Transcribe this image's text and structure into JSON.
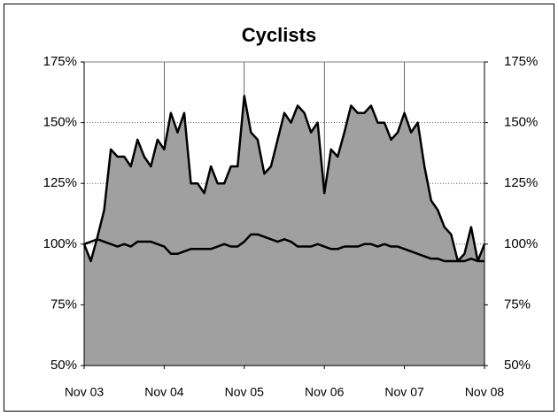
{
  "chart_data": {
    "type": "area",
    "title": "Cyclists",
    "x": [
      "Nov 03",
      null,
      null,
      null,
      null,
      null,
      null,
      null,
      null,
      null,
      null,
      null,
      "Nov 04",
      null,
      null,
      null,
      null,
      null,
      null,
      null,
      null,
      null,
      null,
      null,
      "Nov 05",
      null,
      null,
      null,
      null,
      null,
      null,
      null,
      null,
      null,
      null,
      null,
      "Nov 06",
      null,
      null,
      null,
      null,
      null,
      null,
      null,
      null,
      null,
      null,
      null,
      "Nov 07",
      null,
      null,
      null,
      null,
      null,
      null,
      null,
      null,
      null,
      null,
      null,
      "Nov 08"
    ],
    "series": [
      {
        "type": "area",
        "color": "#000000",
        "fill": "#a0a0a0",
        "values": [
          100,
          93,
          103,
          114,
          139,
          136,
          136,
          132,
          143,
          136,
          132,
          143,
          139,
          154,
          146,
          154,
          125,
          125,
          121,
          132,
          125,
          125,
          132,
          132,
          161,
          146,
          143,
          129,
          132,
          143,
          154,
          150,
          157,
          154,
          146,
          150,
          121,
          139,
          136,
          146,
          157,
          154,
          154,
          157,
          150,
          150,
          143,
          146,
          154,
          146,
          150,
          132,
          118,
          114,
          107,
          104,
          93,
          96,
          107,
          93,
          100
        ]
      },
      {
        "type": "line",
        "color": "#000000",
        "values": [
          100,
          101,
          102,
          101,
          100,
          99,
          100,
          99,
          101,
          101,
          101,
          100,
          99,
          96,
          96,
          97,
          98,
          98,
          98,
          98,
          99,
          100,
          99,
          99,
          101,
          104,
          104,
          103,
          102,
          101,
          102,
          101,
          99,
          99,
          99,
          100,
          99,
          98,
          98,
          99,
          99,
          99,
          100,
          100,
          99,
          100,
          99,
          99,
          98,
          97,
          96,
          95,
          94,
          94,
          93,
          93,
          93,
          93,
          94,
          93,
          93
        ]
      }
    ],
    "ylim": [
      50,
      175
    ],
    "yticks": [
      {
        "value": 50,
        "label": "50%"
      },
      {
        "value": 75,
        "label": "75%"
      },
      {
        "value": 100,
        "label": "100%"
      },
      {
        "value": 125,
        "label": "125%"
      },
      {
        "value": 150,
        "label": "150%"
      },
      {
        "value": 175,
        "label": "175%"
      }
    ],
    "grid": true
  }
}
